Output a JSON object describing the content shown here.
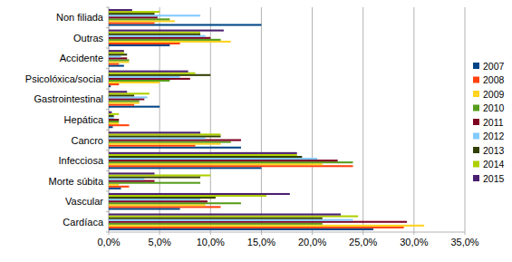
{
  "chart_data": {
    "type": "bar",
    "orientation": "horizontal",
    "grid": true,
    "legend": "right",
    "categories": [
      "Cardíaca",
      "Vascular",
      "Morte súbita",
      "Infecciosa",
      "Cancro",
      "Hepática",
      "Gastrointestinal",
      "Psicolóxica/social",
      "Accidente",
      "Outras",
      "Non filiada"
    ],
    "xlim": [
      0,
      35
    ],
    "xticks": [
      {
        "value": 0,
        "label": "0,0%"
      },
      {
        "value": 5,
        "label": "5,0%"
      },
      {
        "value": 10,
        "label": "10,0%"
      },
      {
        "value": 15,
        "label": "15,0%"
      },
      {
        "value": 20,
        "label": "20,0%"
      },
      {
        "value": 25,
        "label": "25,0%"
      },
      {
        "value": 30,
        "label": "30,0%"
      },
      {
        "value": 35,
        "label": "35,0%"
      }
    ],
    "series": [
      {
        "name": "2007",
        "color": "#004586",
        "values": [
          26,
          7,
          1.2,
          15,
          13,
          0.4,
          5,
          0.2,
          1.5,
          6,
          15
        ]
      },
      {
        "name": "2008",
        "color": "#ff420e",
        "values": [
          29,
          11,
          2,
          24,
          8.5,
          2,
          2.5,
          1,
          1,
          7,
          4.5
        ]
      },
      {
        "name": "2009",
        "color": "#ffd320",
        "values": [
          31,
          9.5,
          1,
          21,
          11,
          1,
          3,
          5,
          2,
          12,
          6.5
        ]
      },
      {
        "name": "2010",
        "color": "#579d1c",
        "values": [
          21,
          13,
          9,
          24,
          12,
          1,
          3,
          6,
          2,
          11,
          6
        ]
      },
      {
        "name": "2011",
        "color": "#7e0021",
        "values": [
          29.3,
          9.7,
          4.5,
          22.5,
          13,
          1,
          3.5,
          8,
          1.8,
          10,
          4.8
        ]
      },
      {
        "name": "2012",
        "color": "#83caff",
        "values": [
          24,
          9,
          3.5,
          20.5,
          9.5,
          0.5,
          3.8,
          7,
          1.2,
          9.5,
          9
        ]
      },
      {
        "name": "2013",
        "color": "#314004",
        "values": [
          21,
          10.5,
          9,
          19,
          11,
          0.5,
          2.5,
          10,
          1.8,
          9,
          4.5
        ]
      },
      {
        "name": "2014",
        "color": "#aecf00",
        "values": [
          24.5,
          15.5,
          10,
          18.5,
          11,
          1,
          4,
          8.5,
          1.5,
          9,
          5
        ]
      },
      {
        "name": "2015",
        "color": "#4b1f6f",
        "values": [
          22.8,
          17.8,
          4.5,
          18.5,
          9,
          0.3,
          1.8,
          7.8,
          1.5,
          11.3,
          2.3
        ]
      }
    ]
  }
}
